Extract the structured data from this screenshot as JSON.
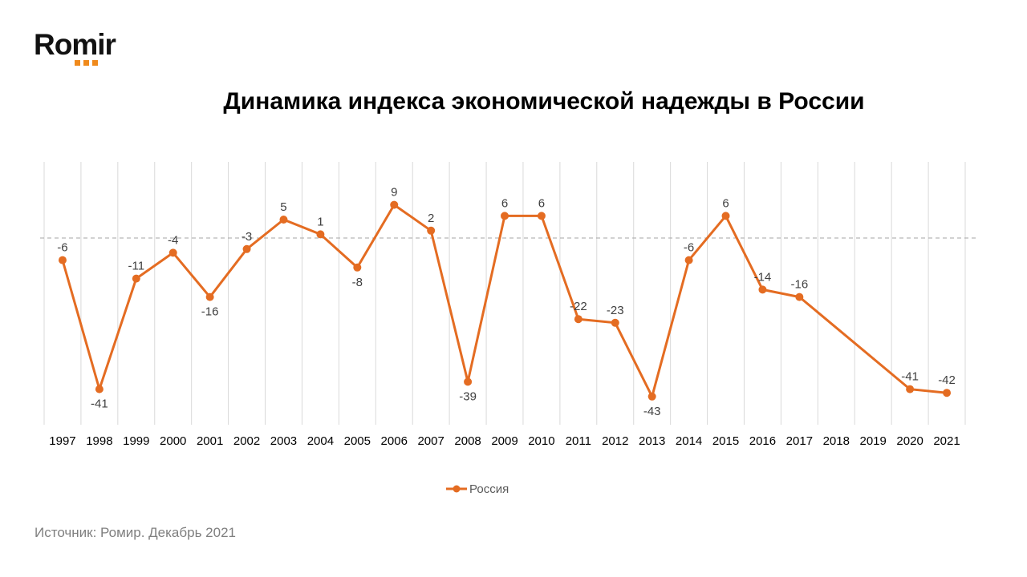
{
  "brand": {
    "name": "Romir"
  },
  "colors": {
    "accent": "#e46c22",
    "logo_dots": "#f08a1c",
    "grid": "#d9d9d9",
    "zero_line": "#a6a6a6",
    "label_text": "#404040"
  },
  "source_note": "Источник: Ромир. Декабрь 2021",
  "chart_data": {
    "type": "line",
    "title": "Динамика индекса экономической надежды в России",
    "xlabel": "",
    "ylabel": "",
    "ylim": [
      -50,
      20
    ],
    "grid": {
      "vertical": true,
      "horizontal": false,
      "zero_line": "dashed"
    },
    "legend_position": "bottom-center",
    "categories": [
      "1997",
      "1998",
      "1999",
      "2000",
      "2001",
      "2002",
      "2003",
      "2004",
      "2005",
      "2006",
      "2007",
      "2008",
      "2009",
      "2010",
      "2011",
      "2012",
      "2013",
      "2014",
      "2015",
      "2016",
      "2017",
      "2018",
      "2019",
      "2020",
      "2021"
    ],
    "series": [
      {
        "name": "Россия",
        "color": "#e46c22",
        "values": [
          -6,
          -41,
          -11,
          -4,
          -16,
          -3,
          5,
          1,
          -8,
          9,
          2,
          -39,
          6,
          6,
          -22,
          -23,
          -43,
          -6,
          6,
          -14,
          -16,
          null,
          null,
          -41,
          -42
        ]
      }
    ]
  }
}
